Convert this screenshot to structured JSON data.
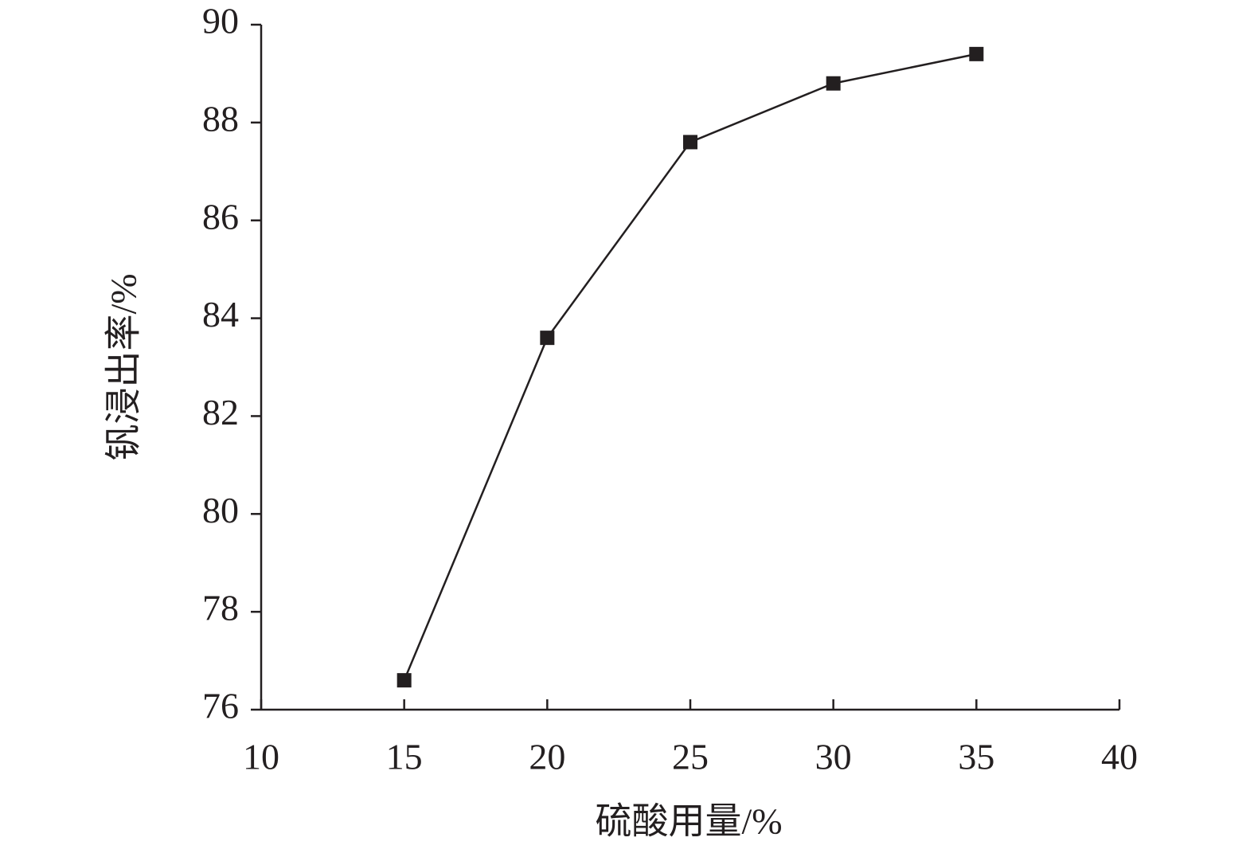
{
  "chart_data": {
    "type": "line",
    "x_label": "硫酸用量/%",
    "y_label": "钒浸出率/%",
    "series": [
      {
        "color": "#231f20",
        "x": [
          15,
          20,
          25,
          30,
          35
        ],
        "values": [
          76.6,
          83.6,
          87.6,
          88.8,
          89.4
        ]
      }
    ],
    "xlim": [
      10,
      40
    ],
    "xticks": [
      10,
      15,
      20,
      25,
      30,
      35,
      40
    ],
    "ylim": [
      76,
      90
    ],
    "yticks": [
      76,
      78,
      80,
      82,
      84,
      86,
      88,
      90
    ],
    "grid": false
  }
}
